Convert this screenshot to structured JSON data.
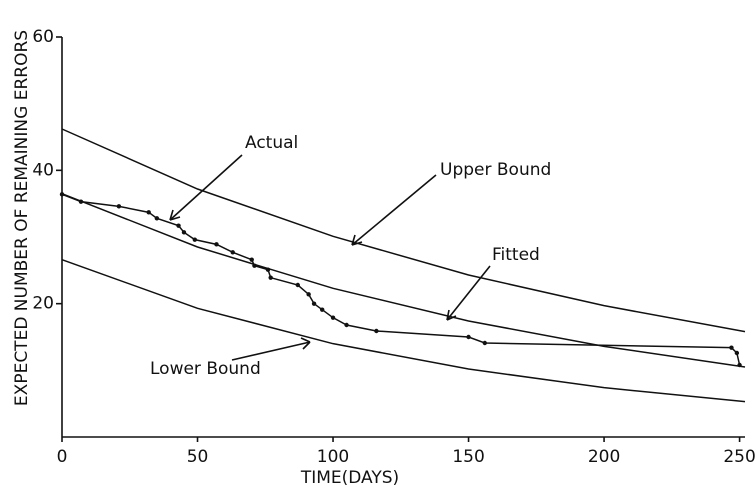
{
  "chart_data": {
    "type": "line",
    "x_label": "TIME(DAYS)",
    "y_label": "EXPECTED NUMBER OF REMAINING ERRORS",
    "xlim": [
      0,
      252
    ],
    "ylim": [
      0,
      60
    ],
    "xticks": [
      0,
      50,
      100,
      150,
      200,
      250
    ],
    "yticks": [
      20,
      40,
      60
    ],
    "color": "#111111",
    "series": [
      {
        "name": "Actual",
        "markers": true,
        "x": [
          0,
          7,
          21,
          32,
          35,
          43,
          45,
          49,
          57,
          63,
          70,
          71,
          76,
          77,
          87,
          91,
          93,
          96,
          100,
          105,
          116,
          150,
          156,
          247,
          249,
          250
        ],
        "values": [
          36.4,
          35.3,
          34.6,
          33.7,
          32.8,
          31.7,
          30.7,
          29.6,
          28.9,
          27.7,
          26.6,
          25.7,
          25.1,
          23.9,
          22.8,
          21.4,
          20,
          19.1,
          17.9,
          16.8,
          15.9,
          15.0,
          14.1,
          13.4,
          12.6,
          10.8
        ]
      },
      {
        "name": "Upper Bound",
        "markers": false,
        "x": [
          0,
          50,
          100,
          150,
          200,
          252
        ],
        "values": [
          46.2,
          37.2,
          30.1,
          24.3,
          19.7,
          15.8
        ]
      },
      {
        "name": "Fitted",
        "markers": false,
        "x": [
          0,
          50,
          100,
          150,
          200,
          252
        ],
        "values": [
          36.5,
          28.5,
          22.3,
          17.4,
          13.6,
          10.5
        ]
      },
      {
        "name": "Lower Bound",
        "markers": false,
        "x": [
          0,
          50,
          100,
          150,
          200,
          252
        ],
        "values": [
          26.6,
          19.3,
          14.0,
          10.2,
          7.4,
          5.3
        ]
      }
    ]
  }
}
